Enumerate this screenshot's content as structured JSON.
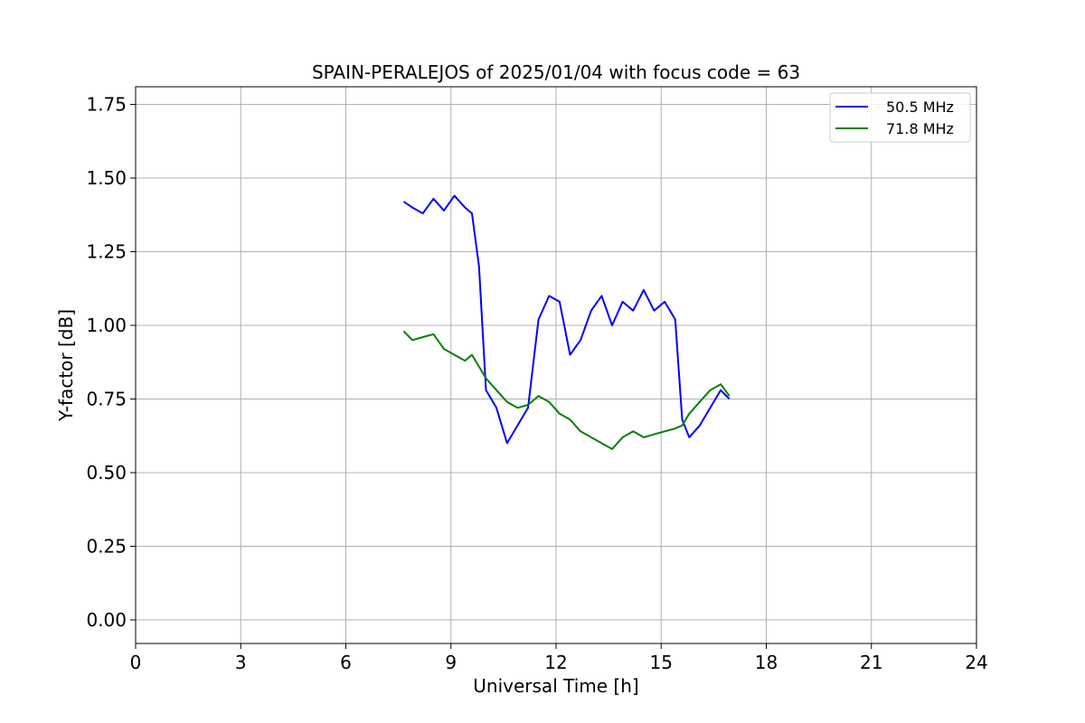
{
  "chart_data": {
    "type": "line",
    "title": "SPAIN-PERALEJOS of 2025/01/04 with focus code = 63",
    "xlabel": "Universal Time [h]",
    "ylabel": "Y-factor [dB]",
    "xlim": [
      0,
      24
    ],
    "ylim": [
      -0.08,
      1.81
    ],
    "xticks": [
      0,
      3,
      6,
      9,
      12,
      15,
      18,
      21,
      24
    ],
    "xtick_labels": [
      "0",
      "3",
      "6",
      "9",
      "12",
      "15",
      "18",
      "21",
      "24"
    ],
    "yticks": [
      0.0,
      0.25,
      0.5,
      0.75,
      1.0,
      1.25,
      1.5,
      1.75
    ],
    "ytick_labels": [
      "0.00",
      "0.25",
      "0.50",
      "0.75",
      "1.00",
      "1.25",
      "1.50",
      "1.75"
    ],
    "grid": true,
    "legend_position": "top-right",
    "series": [
      {
        "name": "50.5 MHz",
        "color": "#0000ff",
        "x": [
          7.65,
          7.9,
          8.2,
          8.5,
          8.8,
          9.1,
          9.4,
          9.6,
          9.8,
          10.0,
          10.3,
          10.6,
          10.9,
          11.2,
          11.5,
          11.8,
          12.1,
          12.4,
          12.7,
          13.0,
          13.3,
          13.6,
          13.9,
          14.2,
          14.5,
          14.8,
          15.1,
          15.4,
          15.6,
          15.8,
          16.1,
          16.4,
          16.7,
          16.95
        ],
        "y": [
          1.42,
          1.4,
          1.38,
          1.43,
          1.39,
          1.44,
          1.4,
          1.38,
          1.2,
          0.78,
          0.72,
          0.6,
          0.66,
          0.72,
          1.02,
          1.1,
          1.08,
          0.9,
          0.95,
          1.05,
          1.1,
          1.0,
          1.08,
          1.05,
          1.12,
          1.05,
          1.08,
          1.02,
          0.68,
          0.62,
          0.66,
          0.72,
          0.78,
          0.75
        ]
      },
      {
        "name": "71.8 MHz",
        "color": "#008000",
        "x": [
          7.65,
          7.9,
          8.2,
          8.5,
          8.8,
          9.1,
          9.4,
          9.6,
          9.8,
          10.0,
          10.3,
          10.6,
          10.9,
          11.2,
          11.5,
          11.8,
          12.1,
          12.4,
          12.7,
          13.0,
          13.3,
          13.6,
          13.9,
          14.2,
          14.5,
          14.8,
          15.1,
          15.4,
          15.6,
          15.8,
          16.1,
          16.4,
          16.7,
          16.95
        ],
        "y": [
          0.98,
          0.95,
          0.96,
          0.97,
          0.92,
          0.9,
          0.88,
          0.9,
          0.86,
          0.82,
          0.78,
          0.74,
          0.72,
          0.73,
          0.76,
          0.74,
          0.7,
          0.68,
          0.64,
          0.62,
          0.6,
          0.58,
          0.62,
          0.64,
          0.62,
          0.63,
          0.64,
          0.65,
          0.66,
          0.7,
          0.74,
          0.78,
          0.8,
          0.76
        ]
      }
    ]
  }
}
